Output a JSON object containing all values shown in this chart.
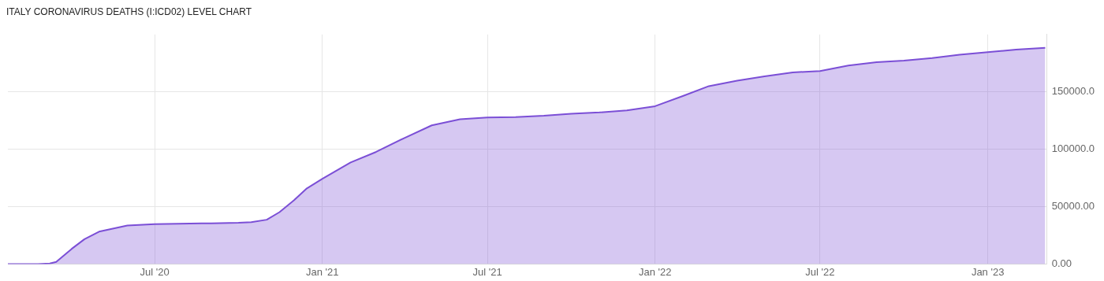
{
  "chart_data": {
    "type": "area",
    "title": "ITALY CORONAVIRUS DEATHS (I:ICD02) LEVEL CHART",
    "x": [
      "2020-01-22",
      "2020-02-24",
      "2020-03-08",
      "2020-03-15",
      "2020-04-01",
      "2020-04-15",
      "2020-05-01",
      "2020-06-01",
      "2020-07-01",
      "2020-09-01",
      "2020-10-01",
      "2020-10-15",
      "2020-11-01",
      "2020-11-15",
      "2020-12-01",
      "2020-12-15",
      "2021-01-01",
      "2021-02-01",
      "2021-03-01",
      "2021-04-01",
      "2021-05-01",
      "2021-06-01",
      "2021-07-01",
      "2021-08-01",
      "2021-09-01",
      "2021-10-01",
      "2021-11-01",
      "2021-12-01",
      "2022-01-01",
      "2022-02-01",
      "2022-03-01",
      "2022-04-01",
      "2022-05-01",
      "2022-06-01",
      "2022-07-01",
      "2022-08-01",
      "2022-09-01",
      "2022-10-01",
      "2022-11-01",
      "2022-12-01",
      "2023-01-01",
      "2023-02-01",
      "2023-03-05"
    ],
    "values": [
      0,
      0,
      400,
      1800,
      13200,
      21600,
      28200,
      33500,
      34800,
      35500,
      35900,
      36400,
      38600,
      45200,
      55600,
      65900,
      74200,
      88500,
      97700,
      109800,
      120800,
      126100,
      127600,
      128100,
      129200,
      130900,
      132100,
      133900,
      137500,
      146500,
      155000,
      159800,
      163500,
      166900,
      168200,
      172900,
      175800,
      177300,
      179400,
      182400,
      184600,
      186800,
      188300
    ],
    "color": "#7b4fd6",
    "xlim": [
      "2020-01-22",
      "2023-03-07"
    ],
    "ylim": [
      0,
      200000
    ],
    "xticks": [
      {
        "value": "2020-07-01",
        "label": "Jul '20"
      },
      {
        "value": "2021-01-01",
        "label": "Jan '21"
      },
      {
        "value": "2021-07-01",
        "label": "Jul '21"
      },
      {
        "value": "2022-01-01",
        "label": "Jan '22"
      },
      {
        "value": "2022-07-01",
        "label": "Jul '22"
      },
      {
        "value": "2023-01-01",
        "label": "Jan '23"
      }
    ],
    "yticks": [
      {
        "value": 0,
        "label": "0.00"
      },
      {
        "value": 50000,
        "label": "50000.00"
      },
      {
        "value": 100000,
        "label": "100000.0"
      },
      {
        "value": 150000,
        "label": "150000.0"
      }
    ],
    "grid": true
  }
}
